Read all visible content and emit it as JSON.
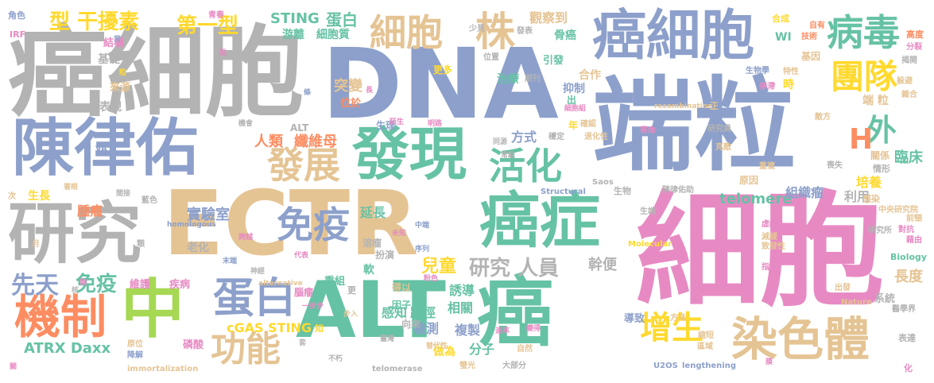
{
  "words": [
    {
      "text": "端粒",
      "color": "s3"
    },
    {
      "text": "細胞",
      "color": "s4"
    },
    {
      "text": "癌細胞",
      "color": "s7"
    },
    {
      "text": "DNA",
      "color": "s3"
    },
    {
      "text": "ECTR",
      "color": "s6"
    },
    {
      "text": "ALT",
      "color": "s1"
    },
    {
      "text": "癌",
      "color": "s1"
    },
    {
      "text": "陳律佑",
      "color": "s3"
    },
    {
      "text": "研究",
      "color": "s7"
    },
    {
      "text": "癌細胞",
      "color": "s3"
    },
    {
      "text": "發現",
      "color": "s1"
    },
    {
      "text": "癌症",
      "color": "s1"
    },
    {
      "text": "中",
      "color": "s5"
    },
    {
      "text": "機制",
      "color": "s2"
    },
    {
      "text": "細胞",
      "color": "s6"
    },
    {
      "text": "染色體",
      "color": "s6"
    },
    {
      "text": "免疫",
      "color": "s3"
    },
    {
      "text": "病毒",
      "color": "s1"
    },
    {
      "text": "團隊",
      "color": "s8"
    },
    {
      "text": "活化",
      "color": "s1"
    },
    {
      "text": "發展",
      "color": "s6"
    },
    {
      "text": "蛋白",
      "color": "s3"
    },
    {
      "text": "功能",
      "color": "s6"
    },
    {
      "text": "增生",
      "color": "s8"
    },
    {
      "text": "株",
      "color": "s6"
    },
    {
      "text": "外",
      "color": "s1"
    },
    {
      "text": "H",
      "color": "s2"
    },
    {
      "text": "第一型",
      "color": "s8"
    },
    {
      "text": "型 干擾素",
      "color": "s8"
    },
    {
      "text": "先天",
      "color": "s3"
    },
    {
      "text": "免疫",
      "color": "s1"
    },
    {
      "text": "研究 人員",
      "color": "s7"
    },
    {
      "text": "STING",
      "color": "s1"
    },
    {
      "text": "蛋白",
      "color": "s1"
    },
    {
      "text": "ATRX Daxx",
      "color": "s1"
    },
    {
      "text": "cGAS STING",
      "color": "s8"
    },
    {
      "text": "實驗室",
      "color": "s3"
    },
    {
      "text": "telomere",
      "color": "s1"
    },
    {
      "text": "人類",
      "color": "s2"
    },
    {
      "text": "纖維母",
      "color": "s2"
    },
    {
      "text": "突變",
      "color": "s6"
    },
    {
      "text": "兒童",
      "color": "s8"
    },
    {
      "text": "幹便",
      "color": "s7"
    },
    {
      "text": "長度",
      "color": "s6"
    },
    {
      "text": "臨床",
      "color": "s1"
    },
    {
      "text": "培養",
      "color": "s8"
    },
    {
      "text": "組織瘤",
      "color": "s3"
    },
    {
      "text": "利用",
      "color": "s7"
    },
    {
      "text": "感知",
      "color": "s1"
    },
    {
      "text": "路徑",
      "color": "s1"
    },
    {
      "text": "檢測",
      "color": "s3"
    },
    {
      "text": "誘導",
      "color": "s1"
    },
    {
      "text": "相關",
      "color": "s1"
    },
    {
      "text": "延長",
      "color": "s1"
    },
    {
      "text": "分子",
      "color": "s1"
    },
    {
      "text": "複製",
      "color": "s3"
    },
    {
      "text": "做為",
      "color": "s8"
    },
    {
      "text": "腫瘤",
      "color": "s2"
    },
    {
      "text": "生長",
      "color": "s8"
    },
    {
      "text": "方式",
      "color": "s3"
    },
    {
      "text": "觀察到",
      "color": "s6"
    },
    {
      "text": "骨癌",
      "color": "s1"
    },
    {
      "text": "游離",
      "color": "s1"
    },
    {
      "text": "細胞質",
      "color": "s1"
    },
    {
      "text": "基礎",
      "color": "s7"
    },
    {
      "text": "結構",
      "color": "s4"
    },
    {
      "text": "表現",
      "color": "s7"
    },
    {
      "text": "來源",
      "color": "s6"
    },
    {
      "text": "老化",
      "color": "s7"
    },
    {
      "text": "維護",
      "color": "s4"
    },
    {
      "text": "疾病",
      "color": "s4"
    },
    {
      "text": "磷酸",
      "color": "s4"
    },
    {
      "text": "治療",
      "color": "s1"
    },
    {
      "text": "位於",
      "color": "s2"
    },
    {
      "text": "合作",
      "color": "s6"
    },
    {
      "text": "抑制",
      "color": "s3"
    },
    {
      "text": "引發",
      "color": "s1"
    },
    {
      "text": "端 粒",
      "color": "s6"
    },
    {
      "text": "導致",
      "color": "s3"
    },
    {
      "text": "系統",
      "color": "s7"
    },
    {
      "text": "重組",
      "color": "s1"
    },
    {
      "text": "腦瘤",
      "color": "s4"
    },
    {
      "text": "得以",
      "color": "s6"
    },
    {
      "text": "軟",
      "color": "s1"
    },
    {
      "text": "溶瘤",
      "color": "s7"
    },
    {
      "text": "扮演",
      "color": "s7"
    },
    {
      "text": "因子",
      "color": "s1"
    },
    {
      "text": "向來",
      "color": "s7"
    },
    {
      "text": "更多",
      "color": "s8"
    },
    {
      "text": "生理",
      "color": "s3"
    },
    {
      "text": "時",
      "color": "s8"
    },
    {
      "text": "基因",
      "color": "s6"
    },
    {
      "text": "原因",
      "color": "s6"
    },
    {
      "text": "WI",
      "color": "s1"
    },
    {
      "text": "ALT",
      "color": "s7"
    },
    {
      "text": "角色",
      "color": "s3"
    },
    {
      "text": "IRF",
      "color": "s4"
    },
    {
      "text": "生物",
      "color": "s7"
    },
    {
      "text": "情形",
      "color": "s7"
    },
    {
      "text": "關係",
      "color": "s6"
    },
    {
      "text": "感染",
      "color": "s6"
    },
    {
      "text": "高度",
      "color": "s2"
    },
    {
      "text": "年",
      "color": "s8"
    },
    {
      "text": "正",
      "color": "s6"
    },
    {
      "text": "出",
      "color": "s1"
    },
    {
      "text": "更",
      "color": "s7"
    },
    {
      "text": "知",
      "color": "s8"
    },
    {
      "text": "化",
      "color": "s4"
    },
    {
      "text": "合成",
      "color": "s8"
    },
    {
      "text": "自有",
      "color": "s2"
    },
    {
      "text": "技術",
      "color": "s2"
    },
    {
      "text": "分裂",
      "color": "s4"
    },
    {
      "text": "揭開",
      "color": "s7"
    },
    {
      "text": "生物學",
      "color": "s3"
    },
    {
      "text": "特性",
      "color": "s6"
    },
    {
      "text": "停滯",
      "color": "s4"
    },
    {
      "text": "躲避",
      "color": "s6"
    },
    {
      "text": "雜合",
      "color": "s6"
    },
    {
      "text": "研究員",
      "color": "s7"
    },
    {
      "text": "敵方",
      "color": "s6"
    },
    {
      "text": "克敵",
      "color": "s6"
    },
    {
      "text": "喪失",
      "color": "s7"
    },
    {
      "text": "重複",
      "color": "s6"
    },
    {
      "text": "中央研究院",
      "color": "s6"
    },
    {
      "text": "前頸",
      "color": "s6"
    },
    {
      "text": "對抗",
      "color": "s4"
    },
    {
      "text": "藉由",
      "color": "s4"
    },
    {
      "text": "虛線",
      "color": "s4"
    },
    {
      "text": "減緩",
      "color": "s6"
    },
    {
      "text": "致發性",
      "color": "s6"
    },
    {
      "text": "研究所",
      "color": "s7"
    },
    {
      "text": "Biology",
      "color": "s1"
    },
    {
      "text": "指引",
      "color": "s4"
    },
    {
      "text": "出發",
      "color": "s6"
    },
    {
      "text": "醫學界",
      "color": "s7"
    },
    {
      "text": "表達",
      "color": "s7"
    },
    {
      "text": "Nature",
      "color": "s6"
    },
    {
      "text": "方法",
      "color": "s6"
    },
    {
      "text": "縮短",
      "color": "s6"
    },
    {
      "text": "區域",
      "color": "s6"
    },
    {
      "text": "U2OS",
      "color": "s3"
    },
    {
      "text": "lengthening",
      "color": "s3"
    },
    {
      "text": "大部分",
      "color": "s7"
    },
    {
      "text": "telomerase",
      "color": "s7"
    },
    {
      "text": "螢光",
      "color": "s6"
    },
    {
      "text": "自然",
      "color": "s6"
    },
    {
      "text": "替代性",
      "color": "s6"
    },
    {
      "text": "不朽",
      "color": "s7"
    },
    {
      "text": "immortalization",
      "color": "s6"
    },
    {
      "text": "降解",
      "color": "s3"
    },
    {
      "text": "原位",
      "color": "s6"
    },
    {
      "text": "Molecular",
      "color": "s8"
    },
    {
      "text": "Structural",
      "color": "s3"
    },
    {
      "text": "recombination",
      "color": "s6"
    },
    {
      "text": "alternative",
      "color": "s6"
    },
    {
      "text": "homologous",
      "color": "s3"
    },
    {
      "text": "Saos",
      "color": "s7"
    },
    {
      "text": "陳律佑助",
      "color": "s7"
    },
    {
      "text": "生端",
      "color": "s7"
    },
    {
      "text": "VA",
      "color": "s3"
    },
    {
      "text": "青春",
      "color": "s4"
    },
    {
      "text": "少見",
      "color": "s7"
    },
    {
      "text": "發表",
      "color": "s7"
    },
    {
      "text": "期刊",
      "color": "s7"
    },
    {
      "text": "位置",
      "color": "s7"
    },
    {
      "text": "確認",
      "color": "s6"
    },
    {
      "text": "穩定",
      "color": "s7"
    },
    {
      "text": "退化性",
      "color": "s6"
    },
    {
      "text": "寄命",
      "color": "s4"
    },
    {
      "text": "細胞組",
      "color": "s4"
    },
    {
      "text": "機會",
      "color": "s7"
    },
    {
      "text": "陌生",
      "color": "s4"
    },
    {
      "text": "明路",
      "color": "s4"
    },
    {
      "text": "同源",
      "color": "s7"
    },
    {
      "text": "常駐",
      "color": "s7"
    },
    {
      "text": "藍色",
      "color": "s7"
    },
    {
      "text": "著眼",
      "color": "s6"
    },
    {
      "text": "間接",
      "color": "s7"
    },
    {
      "text": "一步步",
      "color": "s4"
    },
    {
      "text": "臺灣",
      "color": "s7"
    },
    {
      "text": "速率",
      "color": "s4"
    },
    {
      "text": "變得",
      "color": "s4"
    },
    {
      "text": "中端",
      "color": "s3"
    },
    {
      "text": "未知",
      "color": "s4"
    },
    {
      "text": "序列",
      "color": "s3"
    },
    {
      "text": "粉色",
      "color": "s4"
    },
    {
      "text": "代表",
      "color": "s4"
    },
    {
      "text": "末端",
      "color": "s3"
    },
    {
      "text": "神經",
      "color": "s7"
    },
    {
      "text": "跨越",
      "color": "s4"
    },
    {
      "text": "步入",
      "color": "s6"
    },
    {
      "text": "胸",
      "color": "s4"
    },
    {
      "text": "次",
      "color": "s6"
    },
    {
      "text": "月",
      "color": "s6"
    },
    {
      "text": "類",
      "color": "s7"
    },
    {
      "text": "核",
      "color": "s7"
    },
    {
      "text": "關",
      "color": "s4"
    },
    {
      "text": "指",
      "color": "s7"
    },
    {
      "text": "常",
      "color": "s3"
    },
    {
      "text": "說",
      "color": "s4"
    },
    {
      "text": "條",
      "color": "s3"
    },
    {
      "text": "粒",
      "color": "s8"
    },
    {
      "text": "長",
      "color": "s4"
    },
    {
      "text": "套",
      "color": "s7"
    },
    {
      "text": "膜",
      "color": "s4"
    }
  ]
}
